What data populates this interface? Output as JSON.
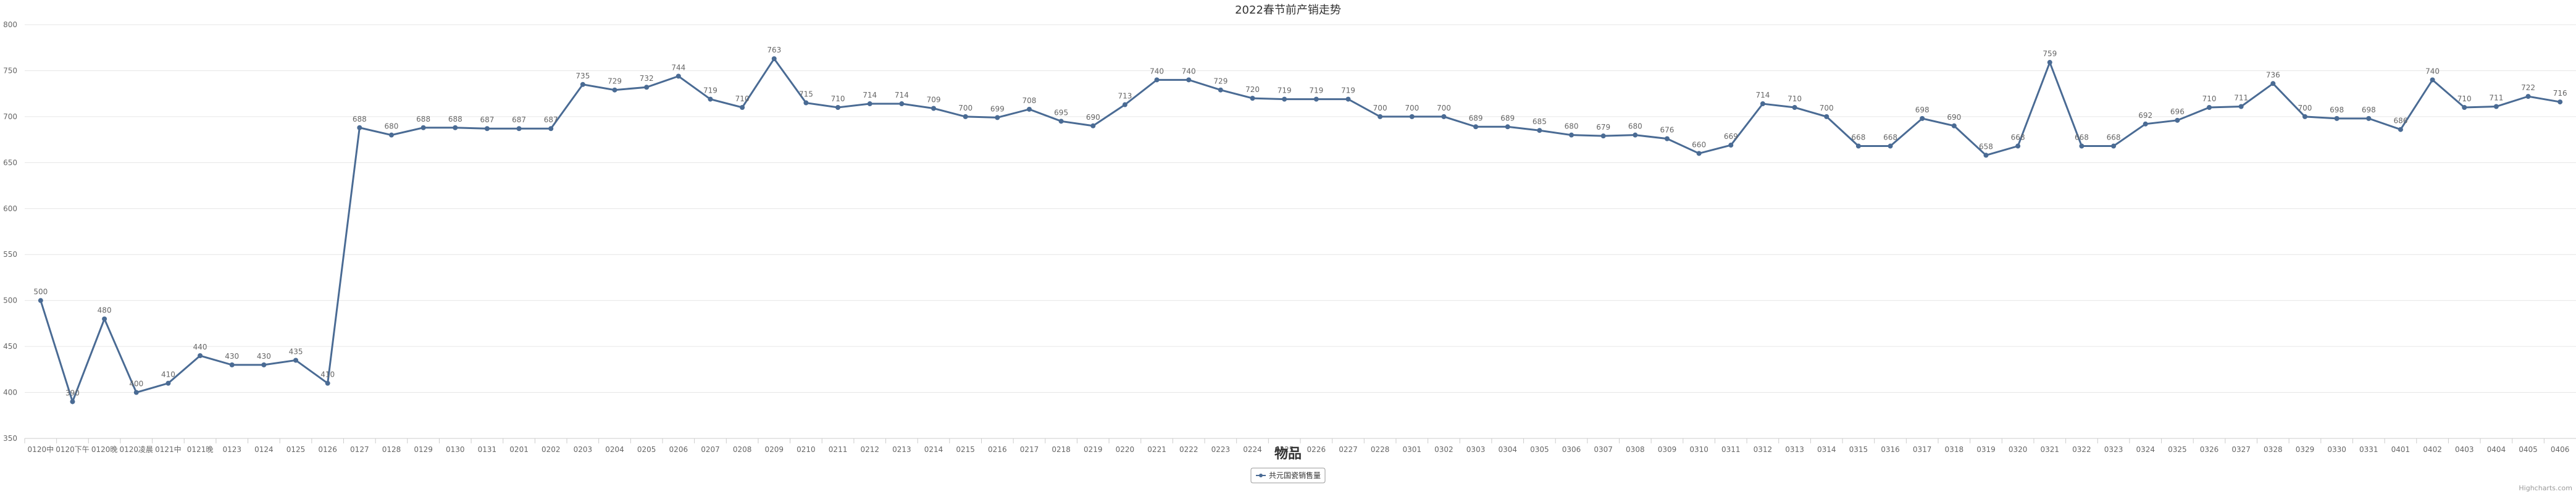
{
  "chart_data": {
    "type": "line",
    "title": "2022春节前产销走势",
    "xlabel": "物品",
    "ylabel": "",
    "ylim": [
      350,
      800
    ],
    "y_ticks": [
      350,
      400,
      450,
      500,
      550,
      600,
      650,
      700,
      750,
      800
    ],
    "grid": true,
    "legend_position": "bottom-center",
    "categories": [
      "0120中",
      "0120下午",
      "0120晚",
      "0120凌晨",
      "0121中",
      "0121晚",
      "0123",
      "0124",
      "0125",
      "0126",
      "0127",
      "0128",
      "0129",
      "0130",
      "0131",
      "0201",
      "0202",
      "0203",
      "0204",
      "0205",
      "0206",
      "0207",
      "0208",
      "0209",
      "0210",
      "0211",
      "0212",
      "0213",
      "0214",
      "0215",
      "0216",
      "0217",
      "0218",
      "0219",
      "0220",
      "0221",
      "0222",
      "0223",
      "0224",
      "0225",
      "0226",
      "0227",
      "0228",
      "0301",
      "0302",
      "0303",
      "0304",
      "0305",
      "0306",
      "0307",
      "0308",
      "0309",
      "0310",
      "0311",
      "0312",
      "0313",
      "0314",
      "0315",
      "0316",
      "0317",
      "0318",
      "0319",
      "0320",
      "0321",
      "0322",
      "0323",
      "0324",
      "0325",
      "0326",
      "0327",
      "0328",
      "0329",
      "0330",
      "0331",
      "0401",
      "0402",
      "0403",
      "0404",
      "0405",
      "0406"
    ],
    "series": [
      {
        "name": "共元国瓷销售量",
        "color": "#4a6b94",
        "values": [
          500,
          390,
          480,
          400,
          410,
          440,
          430,
          430,
          435,
          410,
          688,
          680,
          688,
          688,
          687,
          687,
          687,
          735,
          729,
          732,
          744,
          719,
          710,
          763,
          715,
          710,
          714,
          714,
          709,
          700,
          699,
          708,
          695,
          690,
          713,
          740,
          740,
          729,
          720,
          719,
          719,
          719,
          700,
          700,
          700,
          689,
          689,
          685,
          680,
          679,
          680,
          676,
          660,
          669,
          714,
          710,
          700,
          668,
          668,
          698,
          690,
          658,
          668,
          759,
          668,
          668,
          692,
          696,
          710,
          711,
          736,
          700,
          698,
          698,
          686,
          740,
          710,
          711,
          722,
          716
        ]
      }
    ]
  },
  "credits": "Highcharts.com"
}
